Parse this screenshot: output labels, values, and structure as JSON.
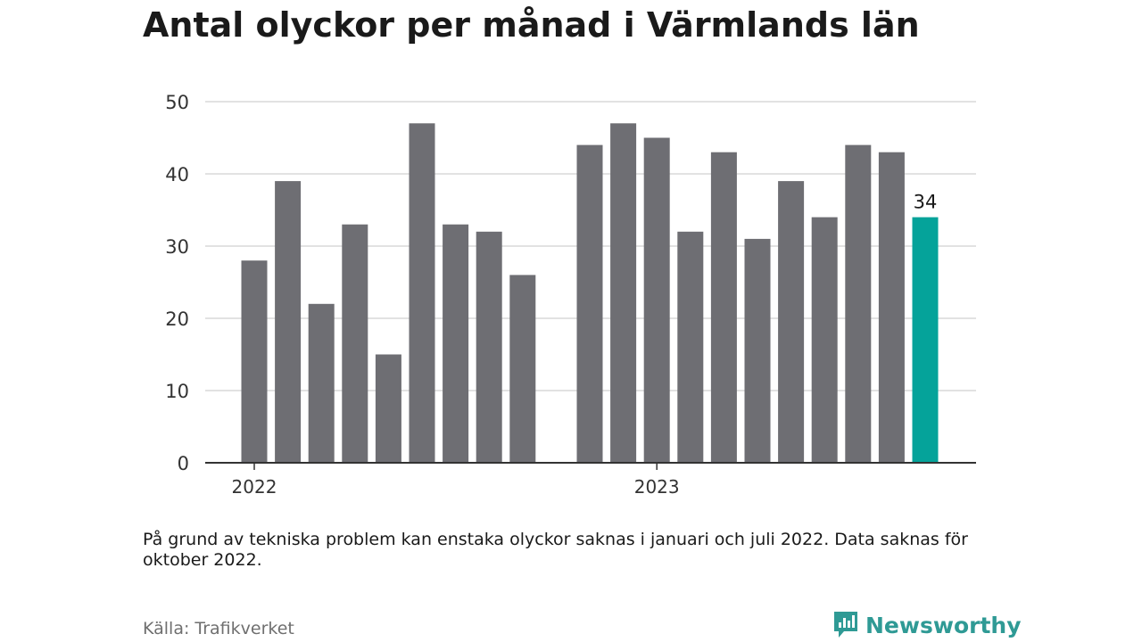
{
  "title": "Antal olyckor per månad i Värmlands län",
  "note": "På grund av tekniska problem kan enstaka olyckor saknas i januari och juli 2022. Data saknas för oktober 2022.",
  "source": "Källa: Trafikverket",
  "brand": {
    "name": "Newsworthy",
    "icon": "newsworthy-logo-icon",
    "color": "#2f9a95"
  },
  "chart_data": {
    "type": "bar",
    "title": "Antal olyckor per månad i Värmlands län",
    "xlabel": "",
    "ylabel": "",
    "ylim": [
      0,
      50
    ],
    "yticks": [
      "0",
      "10",
      "20",
      "30",
      "40",
      "50"
    ],
    "year_labels": [
      {
        "label": "2022",
        "at_index": 0
      },
      {
        "label": "2023",
        "at_index": 12
      }
    ],
    "grid": true,
    "bar_color": "#6e6e73",
    "highlight_color": "#05a39a",
    "highlight_index": 20,
    "highlight_label": "34",
    "months": [
      {
        "month": "2022-01",
        "value": 28
      },
      {
        "month": "2022-02",
        "value": 39
      },
      {
        "month": "2022-03",
        "value": 22
      },
      {
        "month": "2022-04",
        "value": 33
      },
      {
        "month": "2022-05",
        "value": 15
      },
      {
        "month": "2022-06",
        "value": 47
      },
      {
        "month": "2022-07",
        "value": 33
      },
      {
        "month": "2022-08",
        "value": 32
      },
      {
        "month": "2022-09",
        "value": 26
      },
      {
        "month": "2022-10",
        "value": null
      },
      {
        "month": "2022-11",
        "value": 44
      },
      {
        "month": "2022-12",
        "value": 47
      },
      {
        "month": "2023-01",
        "value": 45
      },
      {
        "month": "2023-02",
        "value": 32
      },
      {
        "month": "2023-03",
        "value": 43
      },
      {
        "month": "2023-04",
        "value": 31
      },
      {
        "month": "2023-05",
        "value": 39
      },
      {
        "month": "2023-06",
        "value": 34
      },
      {
        "month": "2023-07",
        "value": 44
      },
      {
        "month": "2023-08",
        "value": 43
      },
      {
        "month": "2023-09",
        "value": 34
      }
    ]
  }
}
